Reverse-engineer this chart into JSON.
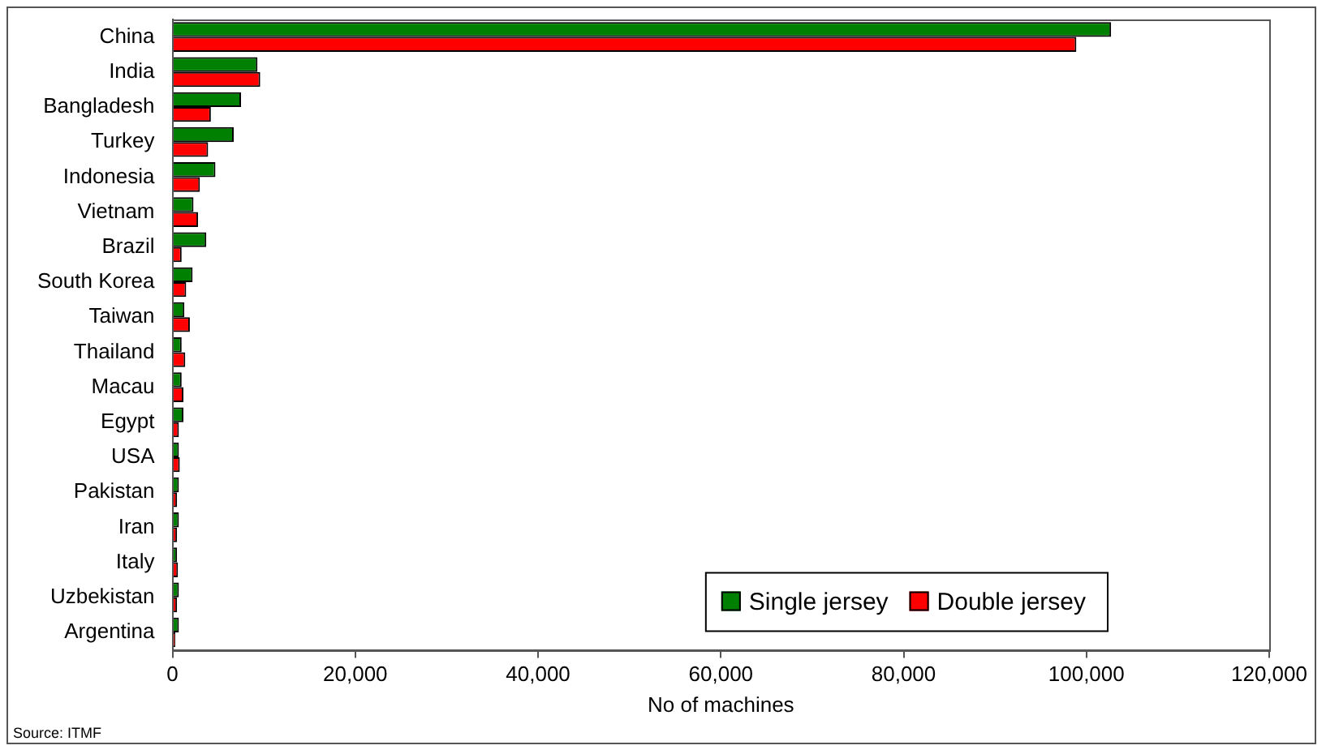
{
  "chart_data": {
    "type": "bar",
    "orientation": "horizontal",
    "xlabel": "No of machines",
    "categories": [
      "China",
      "India",
      "Bangladesh",
      "Turkey",
      "Indonesia",
      "Vietnam",
      "Brazil",
      "South Korea",
      "Taiwan",
      "Thailand",
      "Macau",
      "Egypt",
      "USA",
      "Pakistan",
      "Iran",
      "Italy",
      "Uzbekistan",
      "Argentina"
    ],
    "series": [
      {
        "name": "Single jersey",
        "color": "#008000",
        "values": [
          102700,
          9300,
          7500,
          6700,
          4700,
          2300,
          3700,
          2200,
          1300,
          1000,
          1000,
          1200,
          700,
          700,
          700,
          500,
          700,
          700
        ]
      },
      {
        "name": "Double jersey",
        "color": "#ff0000",
        "values": [
          98900,
          9600,
          4200,
          3900,
          3000,
          2800,
          1000,
          1500,
          1900,
          1400,
          1200,
          700,
          800,
          500,
          500,
          600,
          500,
          300
        ]
      }
    ],
    "xlim": [
      0,
      120000
    ],
    "xticks": [
      {
        "value": 0,
        "label": "0"
      },
      {
        "value": 20000,
        "label": "20,000"
      },
      {
        "value": 40000,
        "label": "40,000"
      },
      {
        "value": 60000,
        "label": "60,000"
      },
      {
        "value": 80000,
        "label": "80,000"
      },
      {
        "value": 100000,
        "label": "100,000"
      },
      {
        "value": 120000,
        "label": "120,000"
      }
    ],
    "grid": false,
    "legend": "bottom right",
    "annotations": [
      "Source: ITMF"
    ]
  }
}
